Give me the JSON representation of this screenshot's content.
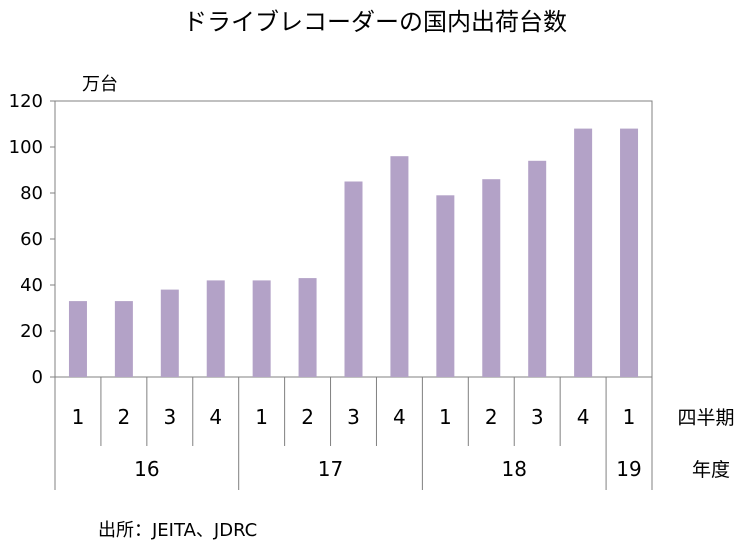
{
  "chart_data": {
    "type": "bar",
    "title": "ドライブレコーダーの国内出荷台数",
    "ylabel": "万台",
    "ylim": [
      0,
      120
    ],
    "yticks": [
      0,
      20,
      40,
      60,
      80,
      100,
      120
    ],
    "grid": false,
    "bar_color": "#b3a2c7",
    "categories": [
      "1",
      "2",
      "3",
      "4",
      "1",
      "2",
      "3",
      "4",
      "1",
      "2",
      "3",
      "4",
      "1"
    ],
    "values": [
      33,
      33,
      38,
      42,
      42,
      43,
      85,
      96,
      79,
      86,
      94,
      108,
      108
    ],
    "groups": [
      {
        "label": "16",
        "start": 0,
        "count": 4
      },
      {
        "label": "17",
        "start": 4,
        "count": 4
      },
      {
        "label": "18",
        "start": 8,
        "count": 4
      },
      {
        "label": "19",
        "start": 12,
        "count": 1
      }
    ],
    "row_labels": {
      "quarter": "四半期",
      "year": "年度"
    },
    "source": "出所：JEITA、JDRC"
  }
}
